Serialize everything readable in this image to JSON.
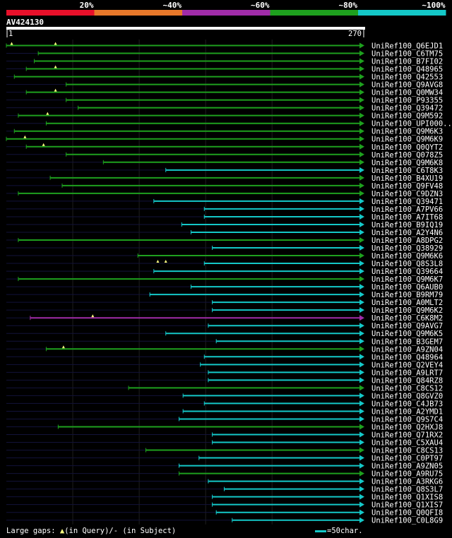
{
  "colors": {
    "background": "#000000",
    "legend": [
      "#e8102a",
      "#e8782a",
      "#a02ca8",
      "#1ea01e",
      "#14c8c8"
    ],
    "grid": "#1e1e1e",
    "ruler": "#ffffff",
    "gap_marker": "#ffff80",
    "line_colors": {
      "green": "#1ea01e",
      "cyan": "#14c8c8",
      "magenta": "#a02ca8"
    }
  },
  "legend": {
    "labels": [
      "20%",
      "~40%",
      "~60%",
      "~80%",
      "~100%"
    ]
  },
  "query": {
    "name": "AV424130",
    "start_label": "1",
    "end_label": "270"
  },
  "footer": {
    "gaps_prefix": "Large gaps: ",
    "gaps_query": "(in Query)/",
    "gaps_subject": "- (in Subject)",
    "scale_text": "=50char."
  },
  "chart_data": {
    "type": "alignment-overview",
    "title": "AV424130",
    "query_length": 270,
    "x_range": [
      1,
      270
    ],
    "identity_bins": [
      "20%",
      "~40%",
      "~60%",
      "~80%",
      "~100%"
    ],
    "hits": [
      {
        "name": "UniRef100_Q6EJD1",
        "start": 1,
        "end": 270,
        "identity": "~80%",
        "gaps": [
          5,
          38
        ]
      },
      {
        "name": "UniRef100_C6TM75",
        "start": 25,
        "end": 270,
        "identity": "~80%",
        "gaps": []
      },
      {
        "name": "UniRef100_B7FI02",
        "start": 22,
        "end": 270,
        "identity": "~80%",
        "gaps": []
      },
      {
        "name": "UniRef100_Q48965",
        "start": 16,
        "end": 270,
        "identity": "~80%",
        "gaps": [
          38
        ]
      },
      {
        "name": "UniRef100_Q42553",
        "start": 7,
        "end": 270,
        "identity": "~80%",
        "gaps": []
      },
      {
        "name": "UniRef100_Q9AVG8",
        "start": 46,
        "end": 270,
        "identity": "~80%",
        "gaps": []
      },
      {
        "name": "UniRef100_Q0MW34",
        "start": 16,
        "end": 270,
        "identity": "~80%",
        "gaps": [
          38
        ]
      },
      {
        "name": "UniRef100_P93355",
        "start": 46,
        "end": 270,
        "identity": "~80%",
        "gaps": []
      },
      {
        "name": "UniRef100_Q39472",
        "start": 55,
        "end": 270,
        "identity": "~80%",
        "gaps": []
      },
      {
        "name": "UniRef100_Q9M592",
        "start": 10,
        "end": 270,
        "identity": "~80%",
        "gaps": [
          32
        ]
      },
      {
        "name": "UniRef100_UPI000..",
        "start": 31,
        "end": 270,
        "identity": "~80%",
        "gaps": []
      },
      {
        "name": "UniRef100_Q9M6K3",
        "start": 7,
        "end": 270,
        "identity": "~80%",
        "gaps": []
      },
      {
        "name": "UniRef100_Q9M6K9",
        "start": 1,
        "end": 270,
        "identity": "~80%",
        "gaps": [
          15
        ]
      },
      {
        "name": "UniRef100_Q0QYT2",
        "start": 16,
        "end": 270,
        "identity": "~80%",
        "gaps": [
          29
        ]
      },
      {
        "name": "UniRef100_Q078Z5",
        "start": 46,
        "end": 270,
        "identity": "~80%",
        "gaps": []
      },
      {
        "name": "UniRef100_Q9M6K8",
        "start": 74,
        "end": 270,
        "identity": "~80%",
        "gaps": []
      },
      {
        "name": "UniRef100_C6T8K3",
        "start": 121,
        "end": 270,
        "identity": "~100%",
        "gaps": []
      },
      {
        "name": "UniRef100_B4XU19",
        "start": 34,
        "end": 270,
        "identity": "~80%",
        "gaps": []
      },
      {
        "name": "UniRef100_Q9FV48",
        "start": 43,
        "end": 270,
        "identity": "~80%",
        "gaps": []
      },
      {
        "name": "UniRef100_C9DZN3",
        "start": 10,
        "end": 270,
        "identity": "~80%",
        "gaps": []
      },
      {
        "name": "UniRef100_Q39471",
        "start": 112,
        "end": 270,
        "identity": "~100%",
        "gaps": []
      },
      {
        "name": "UniRef100_A7PV66",
        "start": 150,
        "end": 270,
        "identity": "~100%",
        "gaps": []
      },
      {
        "name": "UniRef100_A7IT68",
        "start": 150,
        "end": 270,
        "identity": "~100%",
        "gaps": []
      },
      {
        "name": "UniRef100_B9IQ19",
        "start": 133,
        "end": 270,
        "identity": "~100%",
        "gaps": []
      },
      {
        "name": "UniRef100_A2Y4N6",
        "start": 140,
        "end": 270,
        "identity": "~100%",
        "gaps": []
      },
      {
        "name": "UniRef100_A8DPG2",
        "start": 10,
        "end": 270,
        "identity": "~80%",
        "gaps": []
      },
      {
        "name": "UniRef100_Q38929",
        "start": 156,
        "end": 270,
        "identity": "~100%",
        "gaps": []
      },
      {
        "name": "UniRef100_Q9M6K6",
        "start": 100,
        "end": 270,
        "identity": "~80%",
        "gaps": []
      },
      {
        "name": "UniRef100_Q8S3L8",
        "start": 150,
        "end": 270,
        "identity": "~100%",
        "gaps": [
          115,
          121
        ]
      },
      {
        "name": "UniRef100_Q39664",
        "start": 112,
        "end": 270,
        "identity": "~100%",
        "gaps": []
      },
      {
        "name": "UniRef100_Q9M6K7",
        "start": 10,
        "end": 270,
        "identity": "~80%",
        "gaps": []
      },
      {
        "name": "UniRef100_Q6AUB0",
        "start": 140,
        "end": 270,
        "identity": "~100%",
        "gaps": []
      },
      {
        "name": "UniRef100_B9RM79",
        "start": 109,
        "end": 270,
        "identity": "~100%",
        "gaps": []
      },
      {
        "name": "UniRef100_A0MLT2",
        "start": 156,
        "end": 270,
        "identity": "~100%",
        "gaps": []
      },
      {
        "name": "UniRef100_Q9M6K2",
        "start": 156,
        "end": 270,
        "identity": "~100%",
        "gaps": []
      },
      {
        "name": "UniRef100_C6K8M2",
        "start": 19,
        "end": 270,
        "identity": "~60%",
        "gaps": [
          66
        ]
      },
      {
        "name": "UniRef100_Q9AVG7",
        "start": 153,
        "end": 270,
        "identity": "~100%",
        "gaps": []
      },
      {
        "name": "UniRef100_Q9M6K5",
        "start": 121,
        "end": 270,
        "identity": "~100%",
        "gaps": []
      },
      {
        "name": "UniRef100_B3GEM7",
        "start": 159,
        "end": 270,
        "identity": "~100%",
        "gaps": []
      },
      {
        "name": "UniRef100_A9ZN04",
        "start": 31,
        "end": 270,
        "identity": "~80%",
        "gaps": [
          44
        ]
      },
      {
        "name": "UniRef100_Q48964",
        "start": 150,
        "end": 270,
        "identity": "~100%",
        "gaps": []
      },
      {
        "name": "UniRef100_Q2VEY4",
        "start": 147,
        "end": 270,
        "identity": "~100%",
        "gaps": []
      },
      {
        "name": "UniRef100_A9LRT7",
        "start": 153,
        "end": 270,
        "identity": "~100%",
        "gaps": []
      },
      {
        "name": "UniRef100_Q84RZ8",
        "start": 153,
        "end": 270,
        "identity": "~100%",
        "gaps": []
      },
      {
        "name": "UniRef100_C8CS12",
        "start": 93,
        "end": 270,
        "identity": "~80%",
        "gaps": []
      },
      {
        "name": "UniRef100_Q8GVZ0",
        "start": 134,
        "end": 270,
        "identity": "~100%",
        "gaps": []
      },
      {
        "name": "UniRef100_C4JB73",
        "start": 150,
        "end": 270,
        "identity": "~100%",
        "gaps": []
      },
      {
        "name": "UniRef100_A2YMD1",
        "start": 134,
        "end": 270,
        "identity": "~100%",
        "gaps": []
      },
      {
        "name": "UniRef100_Q9S7C4",
        "start": 131,
        "end": 270,
        "identity": "~100%",
        "gaps": []
      },
      {
        "name": "UniRef100_Q2HXJ8",
        "start": 40,
        "end": 270,
        "identity": "~80%",
        "gaps": []
      },
      {
        "name": "UniRef100_Q71RX2",
        "start": 156,
        "end": 270,
        "identity": "~100%",
        "gaps": []
      },
      {
        "name": "UniRef100_C5XAU4",
        "start": 156,
        "end": 270,
        "identity": "~100%",
        "gaps": []
      },
      {
        "name": "UniRef100_C8CS13",
        "start": 106,
        "end": 270,
        "identity": "~80%",
        "gaps": []
      },
      {
        "name": "UniRef100_C0PT97",
        "start": 146,
        "end": 270,
        "identity": "~100%",
        "gaps": []
      },
      {
        "name": "UniRef100_A9ZN05",
        "start": 131,
        "end": 270,
        "identity": "~100%",
        "gaps": []
      },
      {
        "name": "UniRef100_A9RU75",
        "start": 131,
        "end": 270,
        "identity": "~80%",
        "gaps": []
      },
      {
        "name": "UniRef100_A3RKG6",
        "start": 153,
        "end": 270,
        "identity": "~100%",
        "gaps": []
      },
      {
        "name": "UniRef100_Q8S3L7",
        "start": 165,
        "end": 270,
        "identity": "~100%",
        "gaps": []
      },
      {
        "name": "UniRef100_Q1XIS8",
        "start": 156,
        "end": 270,
        "identity": "~100%",
        "gaps": []
      },
      {
        "name": "UniRef100_Q1XIS7",
        "start": 156,
        "end": 270,
        "identity": "~100%",
        "gaps": []
      },
      {
        "name": "UniRef100_Q0QFI8",
        "start": 159,
        "end": 270,
        "identity": "~100%",
        "gaps": []
      },
      {
        "name": "UniRef100_C0L8G9",
        "start": 171,
        "end": 270,
        "identity": "~100%",
        "gaps": []
      }
    ]
  }
}
